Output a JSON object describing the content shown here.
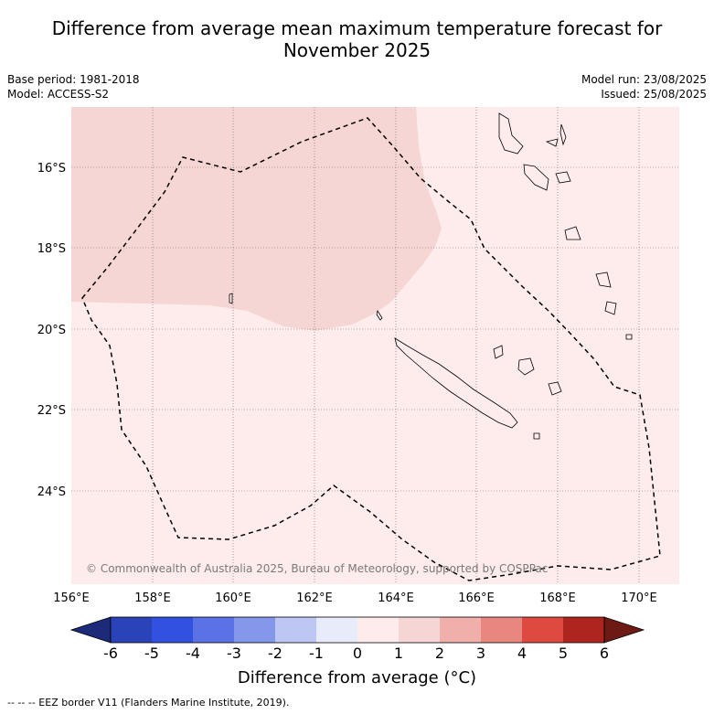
{
  "title_line1": "Difference from average mean maximum temperature forecast for",
  "title_line2": "November 2025",
  "base_period": "Base period: 1981-2018",
  "model": "Model: ACCESS-S2",
  "model_run": "Model run: 23/08/2025",
  "issued": "Issued: 25/08/2025",
  "copyright": "© Commonwealth of Australia 2025, Bureau of Meteorology, supported by COSPPac",
  "footer": "--  --  -- EEZ border V11 (Flanders Marine Institute, 2019).",
  "colorbar": {
    "title": "Difference from average (°C)",
    "ticks": [
      "-6",
      "-5",
      "-4",
      "-3",
      "-2",
      "-1",
      "0",
      "1",
      "2",
      "3",
      "4",
      "5",
      "6"
    ],
    "colors": [
      "#1c2a7a",
      "#2a43b8",
      "#3351e0",
      "#5a72e6",
      "#8597ea",
      "#bec6f3",
      "#e8ebfa",
      "#fdeceb",
      "#f6d6d4",
      "#f0afaa",
      "#e8877f",
      "#de4a40",
      "#ae2520",
      "#6e1a14"
    ]
  },
  "map": {
    "x_ticks": [
      "156°E",
      "158°E",
      "160°E",
      "162°E",
      "164°E",
      "166°E",
      "168°E",
      "170°E"
    ],
    "y_ticks": [
      "16°S",
      "18°S",
      "20°S",
      "22°S",
      "24°S"
    ],
    "region_colors": {
      "zero_to_one": "#fdeceb",
      "one_to_two": "#f6d6d4"
    }
  }
}
